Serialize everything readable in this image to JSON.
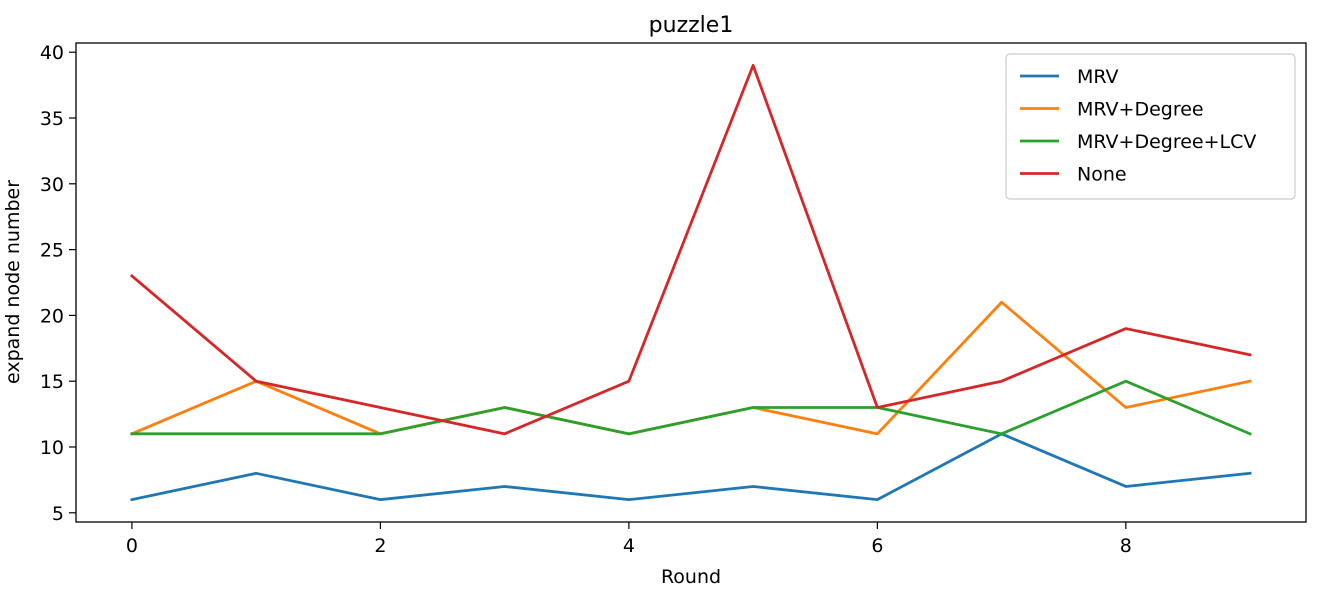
{
  "chart_data": {
    "type": "line",
    "title": "puzzle1",
    "xlabel": "Round",
    "ylabel": "expand node number",
    "x": [
      0,
      1,
      2,
      3,
      4,
      5,
      6,
      7,
      8,
      9
    ],
    "xlim": [
      -0.45,
      9.45
    ],
    "ylim": [
      4.3,
      40.7
    ],
    "xticks": [
      0,
      2,
      4,
      6,
      8
    ],
    "yticks": [
      5,
      10,
      15,
      20,
      25,
      30,
      35,
      40
    ],
    "grid": false,
    "legend_position": "top-right",
    "series": [
      {
        "name": "MRV",
        "color": "#1f77b4",
        "values": [
          6,
          8,
          6,
          7,
          6,
          7,
          6,
          11,
          7,
          8
        ]
      },
      {
        "name": "MRV+Degree",
        "color": "#ff7f0e",
        "values": [
          11,
          15,
          11,
          13,
          11,
          13,
          11,
          21,
          13,
          15
        ]
      },
      {
        "name": "MRV+Degree+LCV",
        "color": "#2ca02c",
        "values": [
          11,
          11,
          11,
          13,
          11,
          13,
          13,
          11,
          15,
          11
        ]
      },
      {
        "name": "None",
        "color": "#d62728",
        "values": [
          23,
          15,
          13,
          11,
          15,
          39,
          13,
          15,
          19,
          17
        ]
      }
    ]
  }
}
